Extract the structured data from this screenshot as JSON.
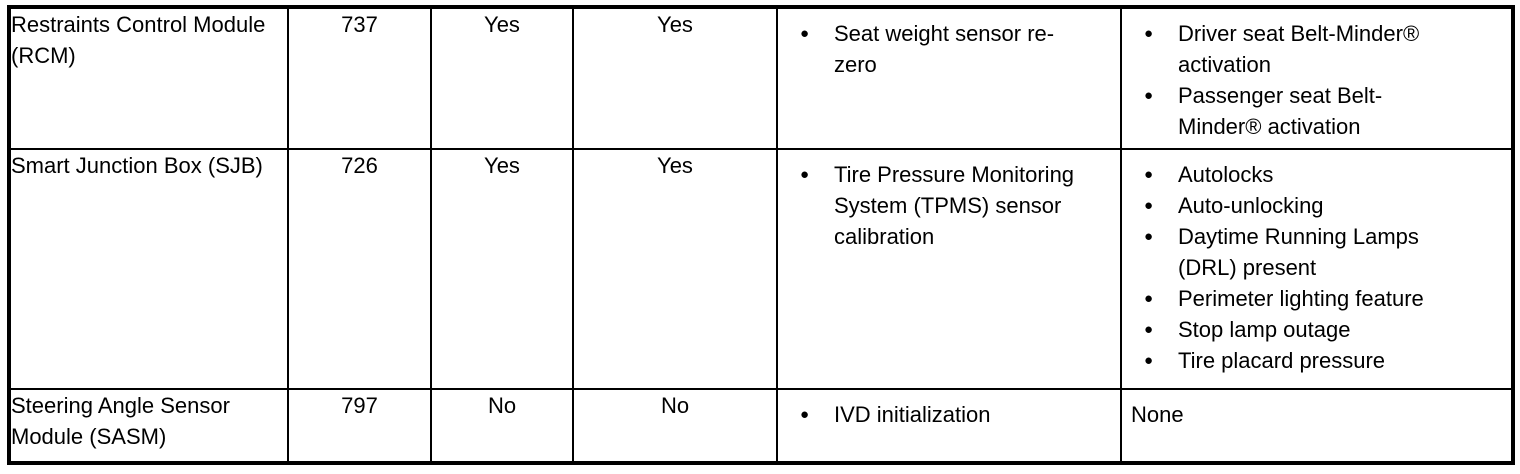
{
  "table": {
    "rows": [
      {
        "module": "Restraints Control Module (RCM)",
        "address": "737",
        "flag1": "Yes",
        "flag2": "Yes",
        "procedures": [
          "Seat weight sensor re-zero"
        ],
        "features": [
          "Driver seat Belt-Minder® activation",
          "Passenger seat Belt-Minder® activation"
        ],
        "features_text": ""
      },
      {
        "module": "Smart Junction Box (SJB)",
        "address": "726",
        "flag1": "Yes",
        "flag2": "Yes",
        "procedures": [
          "Tire Pressure Monitoring System (TPMS) sensor calibration"
        ],
        "features": [
          "Autolocks",
          "Auto-unlocking",
          "Daytime Running Lamps (DRL) present",
          "Perimeter lighting feature",
          "Stop lamp outage",
          "Tire placard pressure"
        ],
        "features_text": ""
      },
      {
        "module": "Steering Angle Sensor Module (SASM)",
        "address": "797",
        "flag1": "No",
        "flag2": "No",
        "procedures": [
          "IVD initialization"
        ],
        "features": [],
        "features_text": "None"
      }
    ]
  }
}
